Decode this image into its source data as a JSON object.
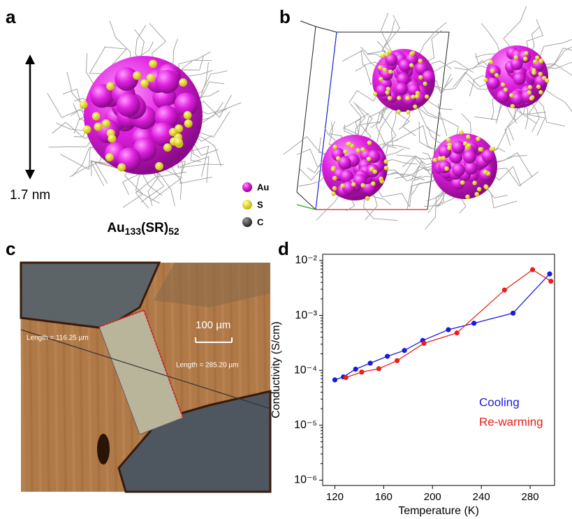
{
  "panels": {
    "a": {
      "label": "a",
      "scale": "1.7 nm",
      "legend": [
        "Au",
        "S",
        "C"
      ],
      "formula": [
        "Au",
        "133",
        "(SR)",
        "52"
      ]
    },
    "b": {
      "label": "b"
    },
    "c": {
      "label": "c",
      "length_1": "Length = 116.25 µm",
      "scale_bar": "100 µm",
      "length_2": "Length = 285.20 µm"
    },
    "d": {
      "label": "d"
    }
  },
  "chart_data": {
    "type": "line",
    "x_label": "Temperature (K)",
    "y_label": "Conductivity (S/cm)",
    "xlim": [
      110,
      300
    ],
    "xticks": [
      120,
      160,
      200,
      240,
      280
    ],
    "ylim": [
      8e-07,
      0.013
    ],
    "log_y": true,
    "yticks": [
      {
        "value": 1e-06,
        "label": "10⁻⁶"
      },
      {
        "value": 1e-05,
        "label": "10⁻⁵"
      },
      {
        "value": 0.0001,
        "label": "10⁻⁴"
      },
      {
        "value": 0.001,
        "label": "10⁻³"
      },
      {
        "value": 0.01,
        "label": "10⁻²"
      }
    ],
    "series": [
      {
        "name": "Cooling",
        "color": "#1a1adf",
        "x": [
          120,
          127,
          137,
          149,
          163,
          177,
          192,
          213,
          234,
          266,
          296
        ],
        "values": [
          6.7e-05,
          7.6e-05,
          0.000105,
          0.000135,
          0.00018,
          0.00023,
          0.00035,
          0.00055,
          0.00072,
          0.0011,
          0.0057
        ]
      },
      {
        "name": "Re-warming",
        "color": "#e8201c",
        "x": [
          129,
          142,
          156,
          171,
          193,
          220,
          259,
          282,
          297
        ],
        "values": [
          7.4e-05,
          9.3e-05,
          0.000107,
          0.00015,
          0.00031,
          0.00048,
          0.0029,
          0.0068,
          0.0042
        ]
      }
    ]
  }
}
